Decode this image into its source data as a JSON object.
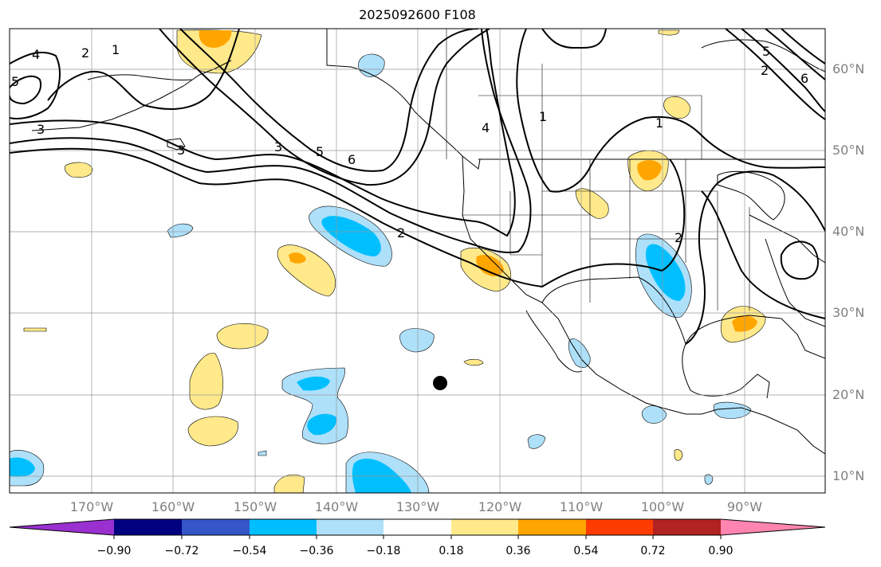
{
  "title": "2025092600 F108",
  "map": {
    "lat_labels": [
      "60°N",
      "50°N",
      "40°N",
      "30°N",
      "20°N",
      "10°N"
    ],
    "lon_labels": [
      "170°W",
      "160°W",
      "150°W",
      "140°W",
      "130°W",
      "120°W",
      "110°W",
      "100°W",
      "90°W"
    ],
    "contour_labels": [
      "5",
      "4",
      "2",
      "1",
      "3",
      "3",
      "3",
      "5",
      "6",
      "2",
      "4",
      "1",
      "2",
      "1",
      "6",
      "2",
      "5"
    ]
  },
  "colorbar": {
    "ticks": [
      "−0.90",
      "−0.72",
      "−0.54",
      "−0.36",
      "−0.18",
      "0.18",
      "0.36",
      "0.54",
      "0.72",
      "0.90"
    ],
    "colors": [
      "#9b30d0",
      "#000080",
      "#3556c8",
      "#00bfff",
      "#aee0fa",
      "#ffffff",
      "#ffe98a",
      "#ffa500",
      "#ff3c00",
      "#b22222",
      "#ff85b0"
    ]
  }
}
